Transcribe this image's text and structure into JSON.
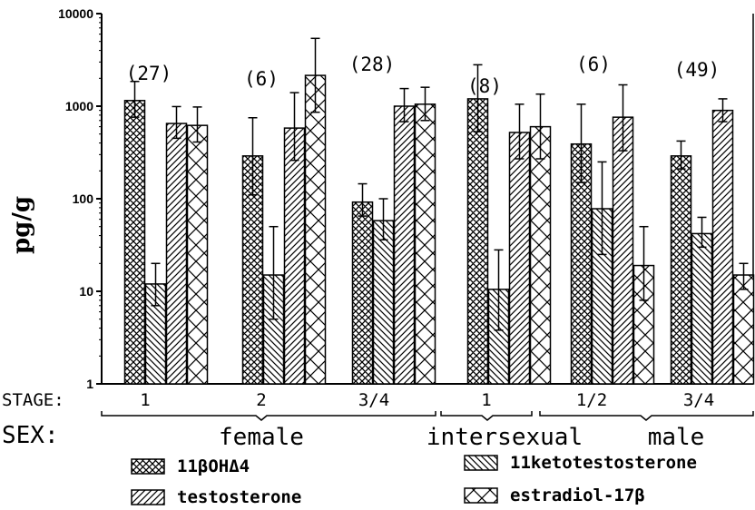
{
  "chart_data": {
    "type": "bar",
    "title": "",
    "ylabel": "pg/g",
    "yscale": "log",
    "ylim": [
      1,
      10000
    ],
    "yticks": [
      "1",
      "10",
      "100",
      "1000",
      "10000"
    ],
    "stage_label": "STAGE:",
    "sex_label": "SEX:",
    "categories": [
      "1",
      "2",
      "3/4",
      "1",
      "1/2",
      "3/4"
    ],
    "sample_sizes": [
      "(27)",
      "(6)",
      "(28)",
      "(8)",
      "(6)",
      "(49)"
    ],
    "sex_groups": [
      {
        "label": "female",
        "categories": [
          0,
          1,
          2
        ]
      },
      {
        "label": "intersexual",
        "categories": [
          3
        ]
      },
      {
        "label": "male",
        "categories": [
          4,
          5
        ]
      }
    ],
    "series": [
      {
        "name": "11βOHΔ4",
        "pattern": "crosshatch",
        "values": [
          1150,
          290,
          92,
          1200,
          390,
          290
        ],
        "err_high": [
          1850,
          750,
          145,
          2800,
          1050,
          420
        ],
        "err_low": [
          760,
          110,
          65,
          530,
          150,
          210
        ]
      },
      {
        "name": "11ketotestosterone",
        "pattern": "back-diagonal",
        "values": [
          12,
          15,
          58,
          10.5,
          78,
          42
        ],
        "err_high": [
          20,
          50,
          100,
          28,
          250,
          63
        ],
        "err_low": [
          7,
          5,
          36,
          3.8,
          25,
          30
        ]
      },
      {
        "name": "testosterone",
        "pattern": "forward-diagonal",
        "values": [
          650,
          580,
          1000,
          520,
          760,
          900
        ],
        "err_high": [
          990,
          1400,
          1550,
          1050,
          1700,
          1200
        ],
        "err_low": [
          450,
          260,
          680,
          270,
          330,
          680
        ]
      },
      {
        "name": "estradiol-17β",
        "pattern": "x-diagonal",
        "values": [
          620,
          2150,
          1050,
          600,
          19,
          15
        ],
        "err_high": [
          980,
          5400,
          1600,
          1350,
          50,
          20
        ],
        "err_low": [
          410,
          860,
          700,
          270,
          8,
          10.5
        ]
      }
    ],
    "legend": [
      {
        "label": "11βOHΔ4",
        "pattern": "crosshatch"
      },
      {
        "label": "11ketotestosterone",
        "pattern": "back-diagonal"
      },
      {
        "label": "testosterone",
        "pattern": "forward-diagonal"
      },
      {
        "label": "estradiol-17β",
        "pattern": "x-diagonal"
      }
    ],
    "legend_position": "bottom",
    "grid": false
  }
}
